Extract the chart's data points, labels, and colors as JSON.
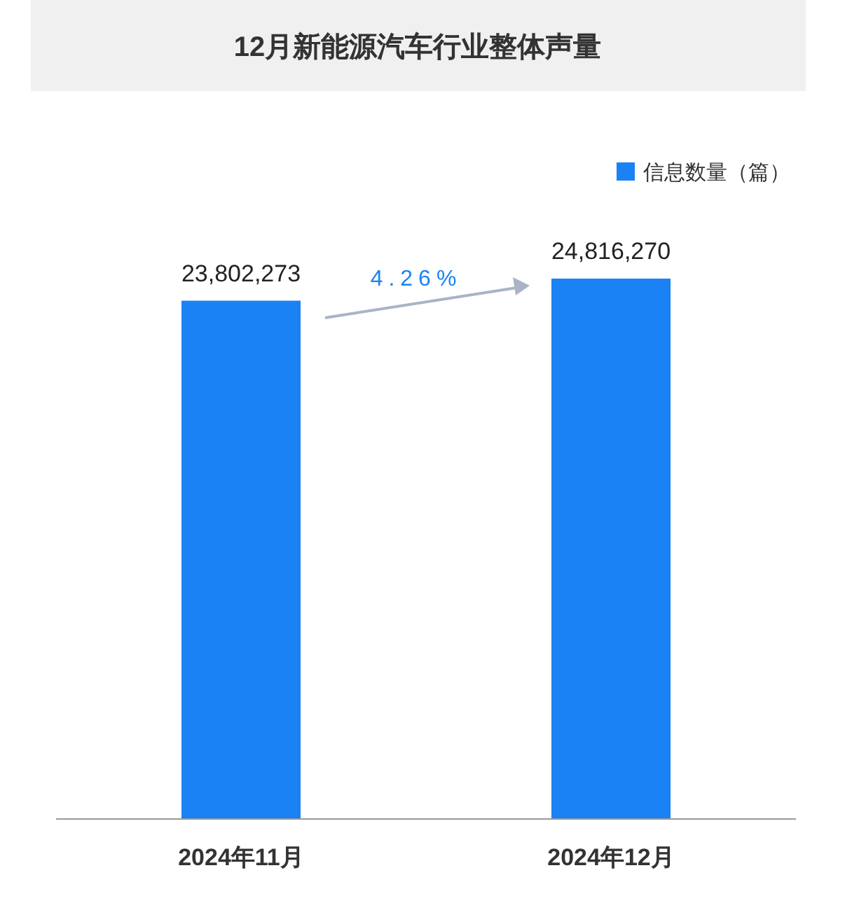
{
  "chart_data": {
    "type": "bar",
    "title": "12月新能源汽车行业整体声量",
    "categories": [
      "2024年11月",
      "2024年12月"
    ],
    "series": [
      {
        "name": "信息数量（篇）",
        "color": "#1a82f5",
        "values": [
          23802273,
          24816270
        ],
        "value_labels": [
          "23,802,273",
          "24,816,270"
        ]
      }
    ],
    "legend": "top right",
    "annotations": [
      "4.26%"
    ]
  }
}
